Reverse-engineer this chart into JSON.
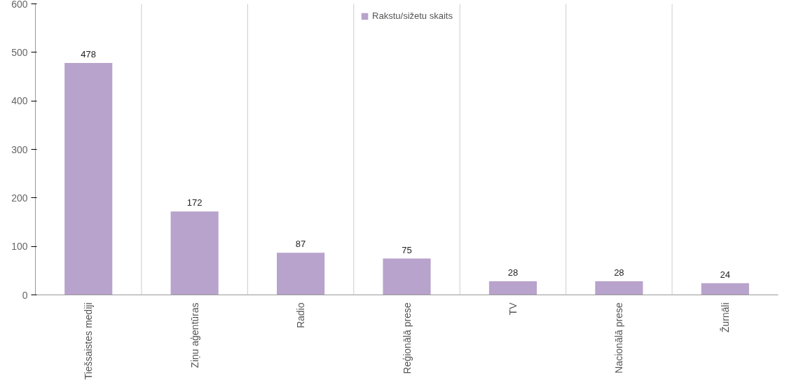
{
  "chart_data": {
    "type": "bar",
    "categories": [
      "Tiešsaistes mediji",
      "Ziņu aģentūras",
      "Radio",
      "Reģionālā prese",
      "TV",
      "Nacionālā prese",
      "Žurnāli"
    ],
    "series": [
      {
        "name": "Rakstu/sižetu skaits",
        "color": "#b8a3cc",
        "values": [
          478,
          172,
          87,
          75,
          28,
          28,
          24
        ]
      }
    ],
    "ylim": [
      0,
      600
    ],
    "yticks": [
      0,
      100,
      200,
      300,
      400,
      500,
      600
    ],
    "grid": "x",
    "legend": "top",
    "data_labels": true
  }
}
